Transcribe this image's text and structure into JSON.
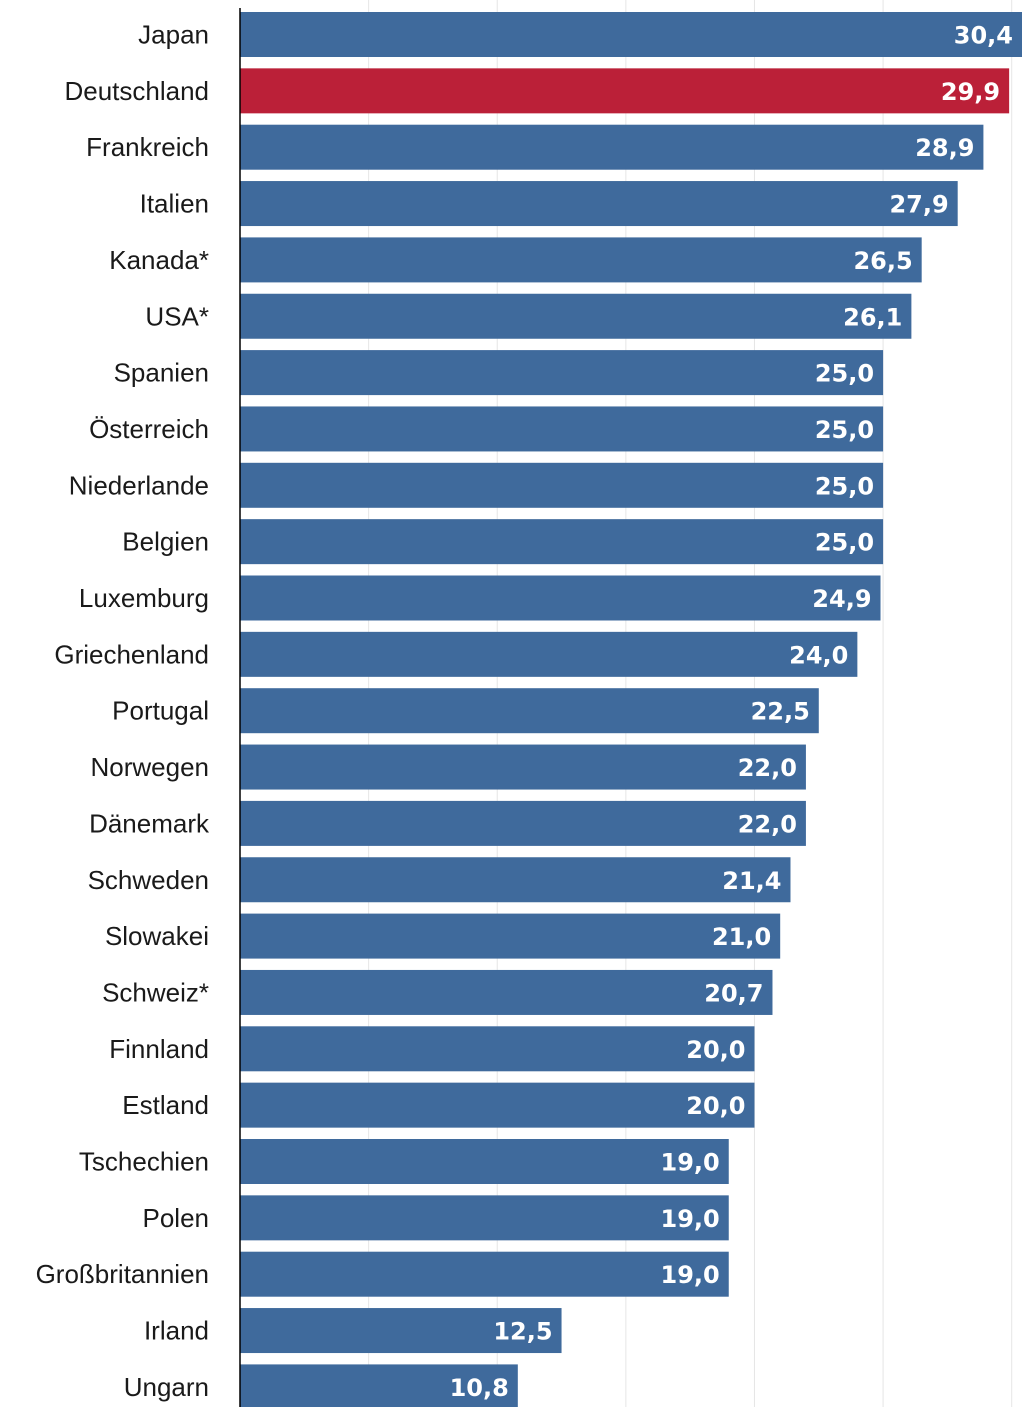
{
  "chart_data": {
    "type": "bar",
    "orientation": "horizontal",
    "title": "",
    "xlabel": "",
    "ylabel": "",
    "xlim": [
      0,
      30.4
    ],
    "grid": true,
    "legend": "none",
    "categories": [
      "Japan",
      "Deutschland",
      "Frankreich",
      "Italien",
      "Kanada*",
      "USA*",
      "Spanien",
      "Österreich",
      "Niederlande",
      "Belgien",
      "Luxemburg",
      "Griechenland",
      "Portugal",
      "Norwegen",
      "Dänemark",
      "Schweden",
      "Slowakei",
      "Schweiz*",
      "Finnland",
      "Estland",
      "Tschechien",
      "Polen",
      "Großbritannien",
      "Irland",
      "Ungarn"
    ],
    "values": [
      30.4,
      29.9,
      28.9,
      27.9,
      26.5,
      26.1,
      25.0,
      25.0,
      25.0,
      25.0,
      24.9,
      24.0,
      22.5,
      22.0,
      22.0,
      21.4,
      21.0,
      20.7,
      20.0,
      20.0,
      19.0,
      19.0,
      19.0,
      12.5,
      10.8
    ],
    "value_labels": [
      "30,4",
      "29,9",
      "28,9",
      "27,9",
      "26,5",
      "26,1",
      "25,0",
      "25,0",
      "25,0",
      "25,0",
      "24,9",
      "24,0",
      "22,5",
      "22,0",
      "22,0",
      "21,4",
      "21,0",
      "20,7",
      "20,0",
      "20,0",
      "19,0",
      "19,0",
      "19,0",
      "12,5",
      "10,8"
    ],
    "highlight_category": "Deutschland",
    "colors": {
      "bar": "#3f6a9c",
      "highlight": "#bb2038",
      "value_text": "#ffffff",
      "category_text": "#1a1a1a",
      "grid": "#e6e6e6",
      "axis": "#000000"
    }
  }
}
